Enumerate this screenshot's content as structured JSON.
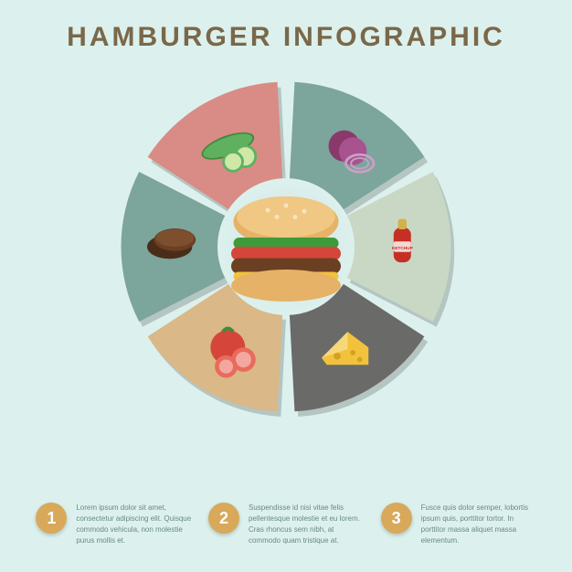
{
  "title": "HAMBURGER INFOGRAPHIC",
  "background_color": "#dcf1ed",
  "title_color": "#7a684a",
  "title_fontsize": 30,
  "wheel": {
    "type": "infographic",
    "outer_radius": 190,
    "inner_radius": 78,
    "center_subject": "hamburger",
    "segments": [
      {
        "name": "cucumber",
        "color": "#d98b85",
        "start_angle": 210,
        "end_angle": 270
      },
      {
        "name": "onion",
        "color": "#7ca59c",
        "start_angle": 270,
        "end_angle": 330
      },
      {
        "name": "ketchup",
        "color": "#c9d8c4",
        "start_angle": 330,
        "end_angle": 30
      },
      {
        "name": "cheese",
        "color": "#6a6a68",
        "start_angle": 30,
        "end_angle": 90
      },
      {
        "name": "tomato",
        "color": "#dab887",
        "start_angle": 90,
        "end_angle": 150
      },
      {
        "name": "patty",
        "color": "#7ca59c",
        "start_angle": 150,
        "end_angle": 210
      }
    ],
    "gap_deg": 6,
    "corner_round": 16,
    "segment_shadow": "rgba(0,0,0,0.18)"
  },
  "steps": [
    {
      "num": "1",
      "text": "Lorem ipsum dolor sit amet, consectetur adipiscing elit. Quisque commodo vehicula, non molestie purus mollis et."
    },
    {
      "num": "2",
      "text": "Suspendisse id nisi vitae felis pellentesque molestie et eu lorem. Cras rhoncus sem nibh, at commodo quam tristique at."
    },
    {
      "num": "3",
      "text": "Fusce quis dolor semper, lobortis ipsum quis, porttitor tortor. In porttitor massa aliquet massa elementum."
    }
  ],
  "step_badge_color": "#d8a95a",
  "step_text_color": "#6a8882",
  "ketchup_label": "KETCHUP"
}
